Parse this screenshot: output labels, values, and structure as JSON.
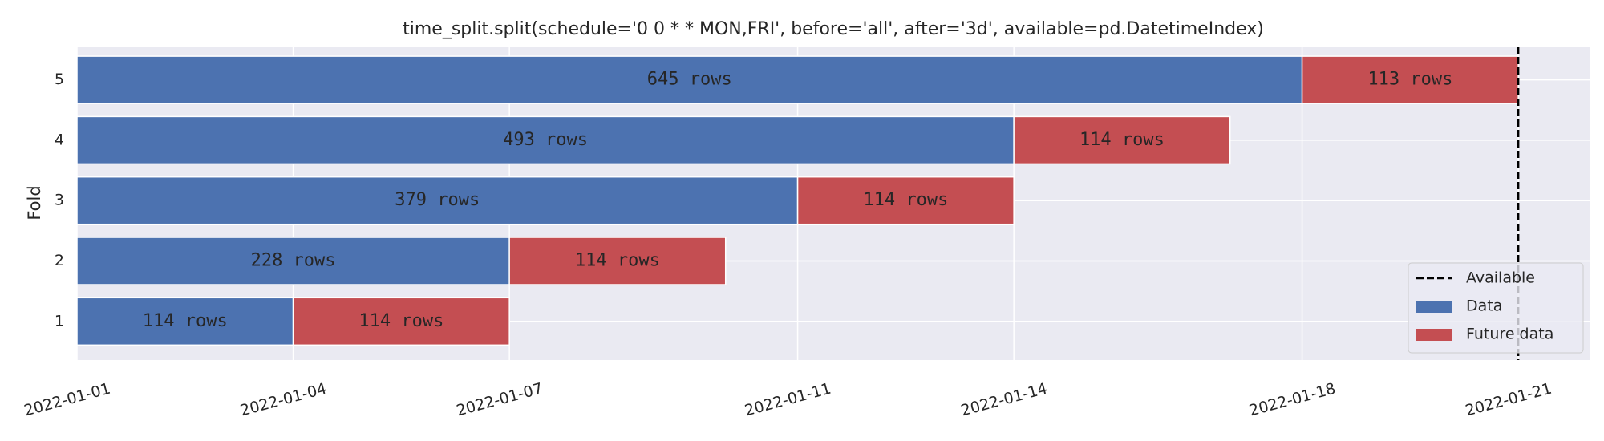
{
  "chart_data": {
    "type": "bar",
    "orientation": "horizontal",
    "title": "time_split.split(schedule='0 0 * * MON,FRI', before='all', after='3d', available=pd.DatetimeIndex)",
    "ylabel": "Fold",
    "categories": [
      "1",
      "2",
      "3",
      "4",
      "5"
    ],
    "xlim": [
      "2022-01-01",
      "2022-01-22"
    ],
    "xticks": [
      "2022-01-01",
      "2022-01-04",
      "2022-01-07",
      "2022-01-11",
      "2022-01-14",
      "2022-01-18",
      "2022-01-21"
    ],
    "grid": true,
    "series": [
      {
        "name": "Data",
        "color": "#4c72b0",
        "start": [
          "2022-01-01",
          "2022-01-01",
          "2022-01-01",
          "2022-01-01",
          "2022-01-01"
        ],
        "end": [
          "2022-01-04",
          "2022-01-07",
          "2022-01-11",
          "2022-01-14",
          "2022-01-18"
        ],
        "labels": [
          "114 rows",
          "228 rows",
          "379 rows",
          "493 rows",
          "645 rows"
        ]
      },
      {
        "name": "Future data",
        "color": "#c44e52",
        "start": [
          "2022-01-04",
          "2022-01-07",
          "2022-01-11",
          "2022-01-14",
          "2022-01-18"
        ],
        "end": [
          "2022-01-07",
          "2022-01-10",
          "2022-01-14",
          "2022-01-17",
          "2022-01-21"
        ],
        "labels": [
          "114 rows",
          "114 rows",
          "114 rows",
          "114 rows",
          "113 rows"
        ]
      }
    ],
    "reference_line": {
      "name": "Available",
      "x": "2022-01-21",
      "color": "#000000",
      "style": "dashed"
    },
    "legend": "lower right"
  }
}
